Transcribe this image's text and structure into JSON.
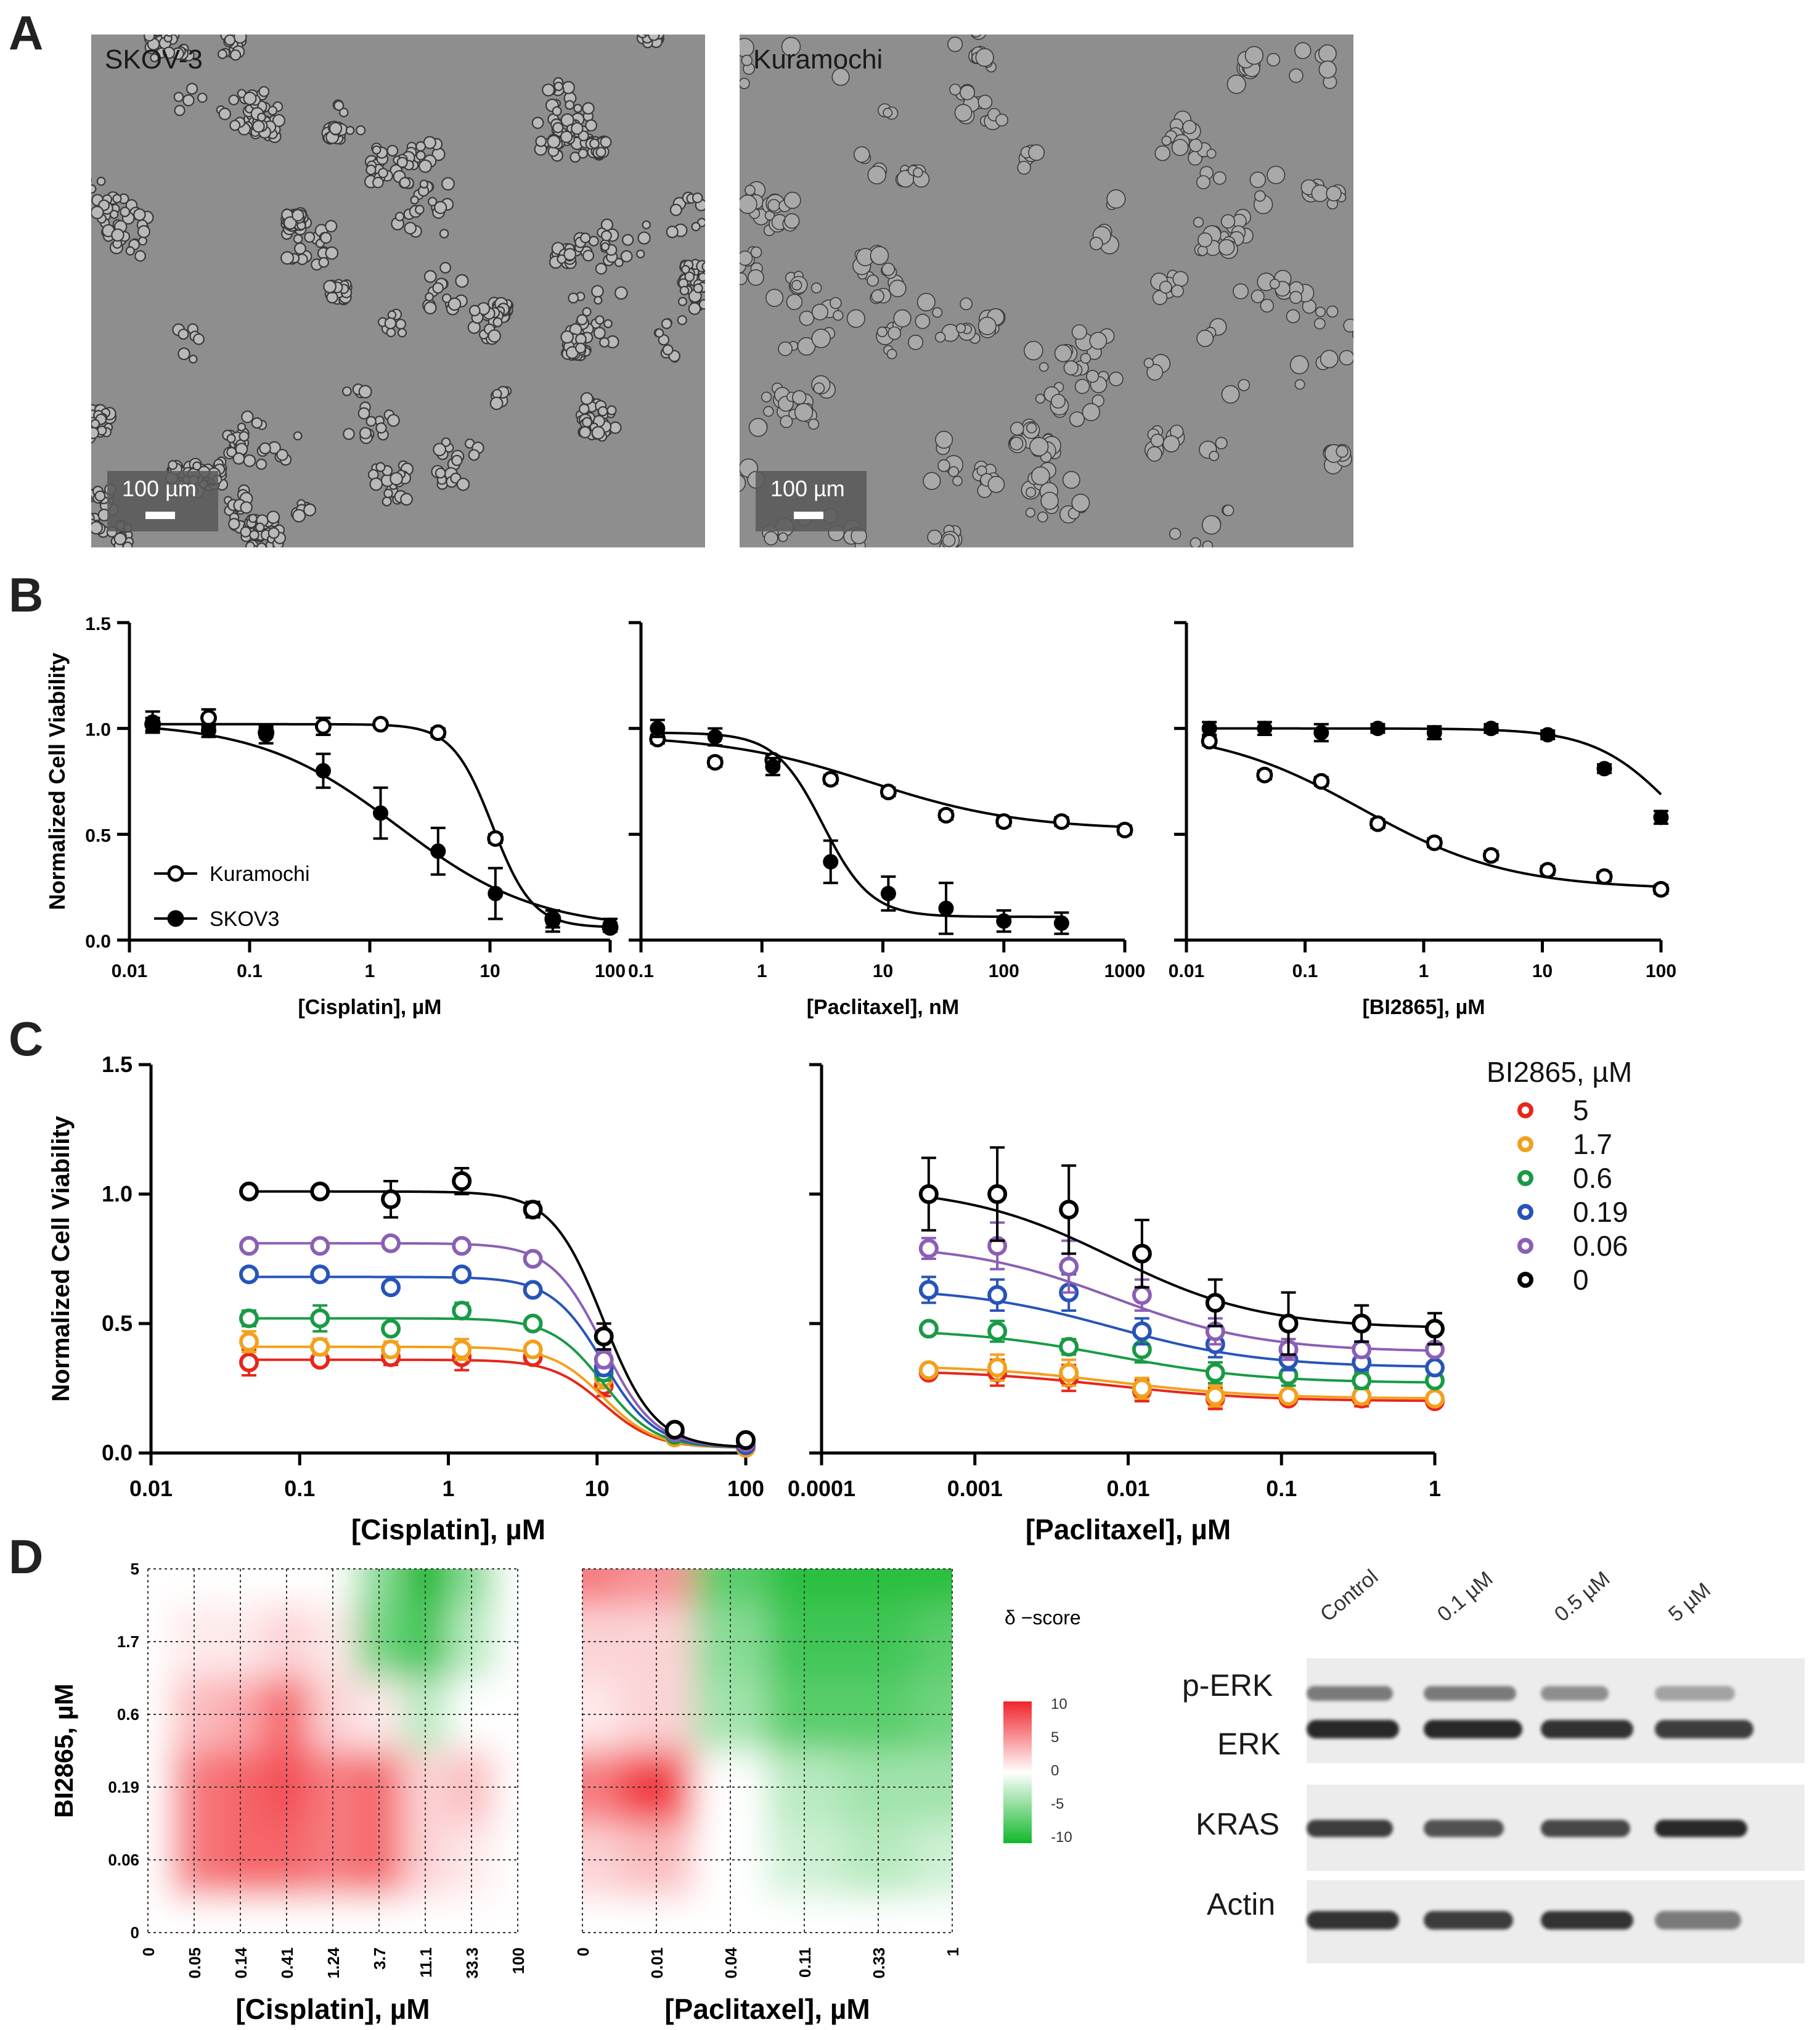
{
  "panel_letters": {
    "a": "A",
    "b": "B",
    "c": "C",
    "d": "D"
  },
  "panel_a": {
    "images": [
      {
        "title": "SKOV-3",
        "scale_bar": "100 µm"
      },
      {
        "title": "Kuramochi",
        "scale_bar": "100 µm"
      }
    ]
  },
  "chart_data": [
    {
      "panel": "B1",
      "type": "scatter",
      "title": "",
      "xlabel": "[Cisplatin], µM",
      "ylabel": "Normalized Cell Viability",
      "xscale": "log",
      "xlim": [
        0.01,
        100
      ],
      "ylim": [
        0,
        1.5
      ],
      "xticks": [
        "0.01",
        "0.1",
        "1",
        "10",
        "100"
      ],
      "yticks": [
        "0.0",
        "0.5",
        "1.0",
        "1.5"
      ],
      "legend": [
        "Kuramochi",
        "SKOV3"
      ],
      "legend_position": "bottom-left",
      "series": [
        {
          "name": "Kuramochi",
          "marker": "open-circle",
          "x": [
            0.0156,
            0.0456,
            0.137,
            0.41,
            1.23,
            3.7,
            11.1,
            33.3,
            100
          ],
          "y": [
            1.02,
            1.05,
            0.98,
            1.01,
            1.02,
            0.98,
            0.48,
            0.1,
            0.06
          ],
          "err": [
            0.03,
            0.04,
            0.02,
            0.04,
            0.01,
            0.02,
            0.02,
            0.04,
            0.02
          ],
          "fit": {
            "top": 1.02,
            "bottom": 0.06,
            "ic50": 10.5,
            "hill": 2.6
          }
        },
        {
          "name": "SKOV3",
          "marker": "filled-circle",
          "x": [
            0.0156,
            0.0456,
            0.137,
            0.41,
            1.23,
            3.7,
            11.1,
            33.3,
            100
          ],
          "y": [
            1.03,
            0.99,
            0.97,
            0.8,
            0.6,
            0.42,
            0.22,
            0.09,
            0.07
          ],
          "err": [
            0.05,
            0.03,
            0.04,
            0.08,
            0.12,
            0.11,
            0.12,
            0.05,
            0.03
          ],
          "fit": {
            "top": 1.03,
            "bottom": 0.05,
            "ic50": 1.7,
            "hill": 0.75
          }
        }
      ]
    },
    {
      "panel": "B2",
      "type": "scatter",
      "xlabel": "[Paclitaxel], nM",
      "ylabel": "",
      "xscale": "log",
      "xlim": [
        0.1,
        1000
      ],
      "ylim": [
        0,
        1.5
      ],
      "xticks": [
        "0.1",
        "1",
        "10",
        "100",
        "1000"
      ],
      "series": [
        {
          "name": "Kuramochi",
          "marker": "open-circle",
          "x": [
            0.137,
            0.41,
            1.23,
            3.7,
            11.1,
            33.3,
            100,
            300,
            1000
          ],
          "y": [
            0.95,
            0.84,
            0.85,
            0.76,
            0.7,
            0.59,
            0.56,
            0.56,
            0.52
          ],
          "err": [
            0.02,
            0.02,
            0.02,
            0.02,
            0.02,
            0.02,
            0.02,
            0.02,
            0.02
          ],
          "fit": {
            "top": 0.97,
            "bottom": 0.52,
            "ic50": 8,
            "hill": 0.7
          }
        },
        {
          "name": "SKOV3",
          "marker": "filled-circle",
          "x": [
            0.137,
            0.41,
            1.23,
            3.7,
            11.1,
            33.3,
            100,
            300
          ],
          "y": [
            1.0,
            0.96,
            0.82,
            0.37,
            0.22,
            0.15,
            0.09,
            0.08
          ],
          "err": [
            0.04,
            0.04,
            0.04,
            0.1,
            0.08,
            0.12,
            0.05,
            0.05
          ],
          "fit": {
            "top": 0.98,
            "bottom": 0.11,
            "ic50": 3.2,
            "hill": 2.2
          }
        }
      ]
    },
    {
      "panel": "B3",
      "type": "scatter",
      "xlabel": "[BI2865], µM",
      "ylabel": "",
      "xscale": "log",
      "xlim": [
        0.01,
        100
      ],
      "ylim": [
        0,
        1.5
      ],
      "xticks": [
        "0.01",
        "0.1",
        "1",
        "10",
        "100"
      ],
      "series": [
        {
          "name": "Kuramochi",
          "marker": "open-circle",
          "x": [
            0.0156,
            0.0456,
            0.137,
            0.41,
            1.23,
            3.7,
            11.1,
            33.3,
            100
          ],
          "y": [
            0.94,
            0.78,
            0.75,
            0.55,
            0.46,
            0.4,
            0.33,
            0.3,
            0.24
          ],
          "err": [
            0.02,
            0.02,
            0.02,
            0.02,
            0.02,
            0.02,
            0.02,
            0.02,
            0.02
          ],
          "fit": {
            "top": 1.0,
            "bottom": 0.24,
            "ic50": 0.3,
            "hill": 0.7
          }
        },
        {
          "name": "SKOV3",
          "marker": "filled-circle",
          "x": [
            0.0156,
            0.0456,
            0.137,
            0.41,
            1.23,
            3.7,
            11.1,
            33.3,
            100
          ],
          "y": [
            1.0,
            1.0,
            0.98,
            1.0,
            0.98,
            1.0,
            0.97,
            0.81,
            0.58
          ],
          "err": [
            0.03,
            0.03,
            0.04,
            0.02,
            0.03,
            0.02,
            0.02,
            0.02,
            0.03
          ],
          "fit": {
            "top": 1.0,
            "bottom": 0.25,
            "ic50": 130,
            "hill": 1.3
          }
        }
      ]
    },
    {
      "panel": "C1",
      "type": "scatter",
      "xlabel": "[Cisplatin], µM",
      "ylabel": "Normalized Cell Viability",
      "xscale": "log",
      "xlim": [
        0.01,
        100
      ],
      "ylim": [
        0,
        1.5
      ],
      "xticks": [
        "0.01",
        "0.1",
        "1",
        "10",
        "100"
      ],
      "yticks": [
        "0.0",
        "0.5",
        "1.0",
        "1.5"
      ],
      "x": [
        0.0456,
        0.137,
        0.41,
        1.23,
        3.7,
        11.1,
        33.3,
        100
      ],
      "series": [
        {
          "name": "5",
          "color": "#e8261b",
          "y": [
            0.35,
            0.36,
            0.37,
            0.37,
            0.37,
            0.26,
            0.06,
            0.02
          ],
          "err": [
            0.05,
            0.02,
            0.03,
            0.05,
            0.02,
            0.04,
            0.02,
            0.02
          ],
          "top": 0.36
        },
        {
          "name": "1.7",
          "color": "#f3a01c",
          "y": [
            0.43,
            0.41,
            0.4,
            0.4,
            0.4,
            0.29,
            0.06,
            0.02
          ],
          "err": [
            0.04,
            0.03,
            0.03,
            0.04,
            0.02,
            0.04,
            0.02,
            0.02
          ],
          "top": 0.41
        },
        {
          "name": "0.6",
          "color": "#199a45",
          "y": [
            0.52,
            0.52,
            0.48,
            0.55,
            0.5,
            0.31,
            0.07,
            0.03
          ],
          "err": [
            0.03,
            0.05,
            0.02,
            0.03,
            0.02,
            0.03,
            0.02,
            0.02
          ],
          "top": 0.52
        },
        {
          "name": "0.19",
          "color": "#2754b8",
          "y": [
            0.69,
            0.69,
            0.64,
            0.69,
            0.63,
            0.33,
            0.08,
            0.03
          ],
          "err": [
            0.02,
            0.02,
            0.02,
            0.02,
            0.02,
            0.03,
            0.02,
            0.02
          ],
          "top": 0.68
        },
        {
          "name": "0.06",
          "color": "#8b5fb5",
          "y": [
            0.8,
            0.8,
            0.81,
            0.8,
            0.75,
            0.36,
            0.08,
            0.04
          ],
          "err": [
            0.02,
            0.02,
            0.02,
            0.02,
            0.02,
            0.03,
            0.02,
            0.02
          ],
          "top": 0.81
        },
        {
          "name": "0",
          "color": "#000000",
          "y": [
            1.01,
            1.01,
            0.98,
            1.05,
            0.94,
            0.45,
            0.09,
            0.05
          ],
          "err": [
            0.02,
            0.02,
            0.07,
            0.05,
            0.03,
            0.05,
            0.02,
            0.02
          ],
          "top": 1.01
        }
      ]
    },
    {
      "panel": "C2",
      "type": "scatter",
      "xlabel": "[Paclitaxel], µM",
      "ylabel": "",
      "xscale": "log",
      "xlim": [
        0.0001,
        1
      ],
      "ylim": [
        0,
        1.5
      ],
      "xticks": [
        "0.0001",
        "0.001",
        "0.01",
        "0.1",
        "1"
      ],
      "x": [
        0.0005,
        0.0014,
        0.0041,
        0.0123,
        0.037,
        0.111,
        0.333,
        1
      ],
      "series": [
        {
          "name": "5",
          "color": "#e8261b",
          "y": [
            0.31,
            0.31,
            0.29,
            0.24,
            0.21,
            0.21,
            0.21,
            0.2
          ],
          "err": [
            0.02,
            0.05,
            0.05,
            0.04,
            0.04,
            0.02,
            0.03,
            0.02
          ],
          "top": 0.32,
          "bottom": 0.2
        },
        {
          "name": "1.7",
          "color": "#f3a01c",
          "y": [
            0.32,
            0.33,
            0.31,
            0.25,
            0.22,
            0.22,
            0.22,
            0.21
          ],
          "err": [
            0.02,
            0.05,
            0.05,
            0.04,
            0.04,
            0.02,
            0.03,
            0.02
          ],
          "top": 0.34,
          "bottom": 0.21
        },
        {
          "name": "0.6",
          "color": "#199a45",
          "y": [
            0.48,
            0.47,
            0.41,
            0.4,
            0.31,
            0.3,
            0.28,
            0.28
          ],
          "err": [
            0.02,
            0.04,
            0.03,
            0.05,
            0.04,
            0.04,
            0.03,
            0.02
          ],
          "top": 0.48,
          "bottom": 0.27
        },
        {
          "name": "0.19",
          "color": "#2754b8",
          "y": [
            0.63,
            0.61,
            0.62,
            0.47,
            0.42,
            0.36,
            0.35,
            0.33
          ],
          "err": [
            0.05,
            0.06,
            0.07,
            0.05,
            0.05,
            0.04,
            0.03,
            0.02
          ],
          "top": 0.64,
          "bottom": 0.33
        },
        {
          "name": "0.06",
          "color": "#8b5fb5",
          "y": [
            0.79,
            0.8,
            0.72,
            0.61,
            0.47,
            0.4,
            0.4,
            0.4
          ],
          "err": [
            0.04,
            0.09,
            0.1,
            0.06,
            0.05,
            0.04,
            0.03,
            0.02
          ],
          "top": 0.81,
          "bottom": 0.39
        },
        {
          "name": "0",
          "color": "#000000",
          "y": [
            1.0,
            1.0,
            0.94,
            0.77,
            0.58,
            0.5,
            0.5,
            0.48
          ],
          "err": [
            0.14,
            0.18,
            0.17,
            0.13,
            0.09,
            0.12,
            0.07,
            0.06
          ],
          "top": 1.03,
          "bottom": 0.48
        }
      ]
    },
    {
      "panel": "D1",
      "type": "heatmap",
      "xlabel": "[Cisplatin], µM",
      "ylabel": "BI2865, µM",
      "xticks": [
        "0",
        "0.05",
        "0.14",
        "0.41",
        "1.24",
        "3.7",
        "11.1",
        "33.3",
        "100"
      ],
      "yticks": [
        "0",
        "0.06",
        "0.19",
        "0.6",
        "1.7",
        "5"
      ],
      "values": [
        [
          0,
          0,
          0,
          0,
          0,
          0,
          0,
          0,
          0
        ],
        [
          0,
          6,
          7,
          7,
          6,
          7,
          2,
          1,
          0
        ],
        [
          0,
          6,
          7,
          8,
          6,
          7,
          2,
          3,
          0
        ],
        [
          0,
          3,
          4,
          7,
          2,
          1,
          -3,
          0,
          0
        ],
        [
          0,
          1,
          1,
          2,
          1,
          -6,
          -8,
          -3,
          0
        ],
        [
          0,
          0,
          0,
          0,
          0,
          -5,
          -10,
          -5,
          0
        ]
      ]
    },
    {
      "panel": "D2",
      "type": "heatmap",
      "xlabel": "[Paclitaxel], µM",
      "ylabel": "",
      "xticks": [
        "0",
        "0.01",
        "0.04",
        "0.11",
        "0.33",
        "1"
      ],
      "yticks": [
        "0",
        "0.06",
        "0.19",
        "0.6",
        "1.7",
        "5"
      ],
      "values": [
        [
          0,
          0,
          0,
          0,
          0,
          0
        ],
        [
          2,
          3,
          0,
          -2,
          -3,
          -2
        ],
        [
          6,
          9,
          0,
          -3,
          -4,
          -4
        ],
        [
          1,
          2,
          -4,
          -7,
          -7,
          -6
        ],
        [
          2,
          2,
          -5,
          -8,
          -8,
          -7
        ],
        [
          6,
          5,
          -7,
          -9,
          -9,
          -9
        ]
      ]
    }
  ],
  "panel_c_legend": {
    "title": "BI2865, µM",
    "items": [
      {
        "label": "5",
        "color": "#e8261b"
      },
      {
        "label": "1.7",
        "color": "#f3a01c"
      },
      {
        "label": "0.6",
        "color": "#199a45"
      },
      {
        "label": "0.19",
        "color": "#2754b8"
      },
      {
        "label": "0.06",
        "color": "#8b5fb5"
      },
      {
        "label": "0",
        "color": "#000000"
      }
    ]
  },
  "colorbar": {
    "title": "δ −score",
    "ticks": [
      "10",
      "5",
      "0",
      "-5",
      "-10"
    ],
    "colors": {
      "high": "#f0242c",
      "mid": "#ffffff",
      "low": "#11b82c"
    }
  },
  "western_blot": {
    "lanes": [
      "Control",
      "0.1 µM",
      "0.5 µM",
      "5 µM"
    ],
    "rows": [
      "p-ERK",
      "ERK",
      "KRAS",
      "Actin"
    ]
  }
}
